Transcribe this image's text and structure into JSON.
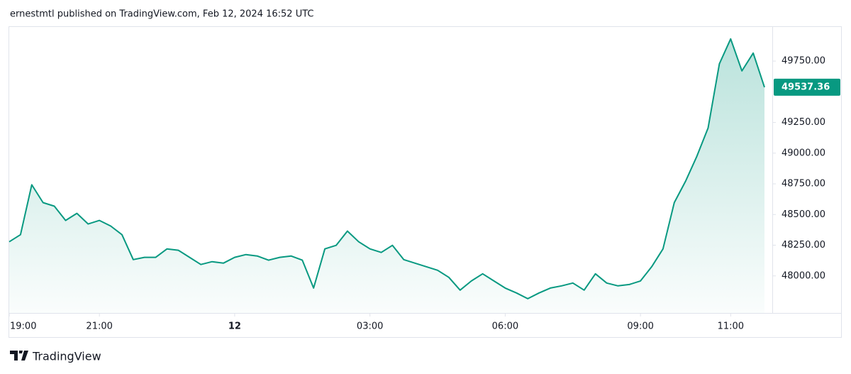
{
  "chart_data": {
    "type": "area",
    "title": "ernestmtl published on TradingView.com, Feb 12, 2024 16:52 UTC",
    "brand": "TradingView",
    "color": "#089981",
    "x": [
      "19:00",
      "19:15",
      "19:30",
      "19:45",
      "20:00",
      "20:15",
      "20:30",
      "20:45",
      "21:00",
      "21:15",
      "21:30",
      "21:45",
      "22:00",
      "22:15",
      "22:30",
      "22:45",
      "23:00",
      "23:15",
      "23:30",
      "23:45",
      "00:00",
      "00:15",
      "00:30",
      "00:45",
      "01:00",
      "01:15",
      "01:30",
      "01:45",
      "02:00",
      "02:15",
      "02:30",
      "02:45",
      "03:00",
      "03:15",
      "03:30",
      "03:45",
      "04:00",
      "04:15",
      "04:30",
      "04:45",
      "05:00",
      "05:15",
      "05:30",
      "05:45",
      "06:00",
      "06:15",
      "06:30",
      "06:45",
      "07:00",
      "07:15",
      "07:30",
      "07:45",
      "08:00",
      "08:15",
      "08:30",
      "08:45",
      "09:00",
      "09:15",
      "09:30",
      "09:45",
      "10:00",
      "10:15",
      "10:30",
      "10:45",
      "11:00",
      "11:15",
      "11:30",
      "11:45"
    ],
    "values": [
      48278,
      48336,
      48742,
      48597,
      48568,
      48452,
      48510,
      48423,
      48452,
      48406,
      48336,
      48133,
      48151,
      48151,
      48220,
      48209,
      48151,
      48093,
      48116,
      48104,
      48151,
      48174,
      48162,
      48128,
      48151,
      48162,
      48128,
      47901,
      48220,
      48249,
      48365,
      48278,
      48220,
      48191,
      48249,
      48133,
      48104,
      48075,
      48046,
      47988,
      47884,
      47959,
      48017,
      47959,
      47901,
      47861,
      47814,
      47861,
      47901,
      47919,
      47942,
      47884,
      48017,
      47942,
      47919,
      47930,
      47959,
      48075,
      48220,
      48597,
      48771,
      48974,
      49206,
      49728,
      49931,
      49670,
      49815,
      49537.36
    ],
    "last_price": 49537.36,
    "ylim": [
      47698,
      50028
    ],
    "yticks": [
      {
        "value": 48000,
        "label": "48000.00"
      },
      {
        "value": 48250,
        "label": "48250.00"
      },
      {
        "value": 48500,
        "label": "48500.00"
      },
      {
        "value": 48750,
        "label": "48750.00"
      },
      {
        "value": 49000,
        "label": "49000.00"
      },
      {
        "value": 49250,
        "label": "49250.00"
      },
      {
        "value": 49750,
        "label": "49750.00"
      }
    ],
    "xticks": [
      "19:00",
      "21:00",
      {
        "value": "00:00",
        "label": "12"
      },
      "03:00",
      "06:00",
      "09:00",
      "11:00"
    ],
    "grid": false
  }
}
